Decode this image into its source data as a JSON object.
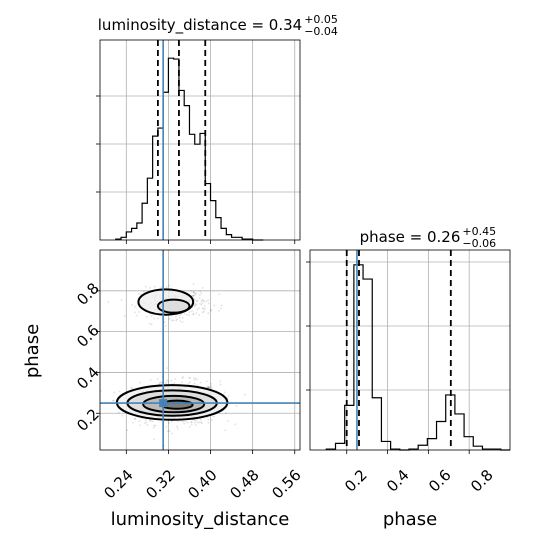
{
  "chart_data": [
    {
      "panel": "luminosity_distance",
      "type": "histogram",
      "title_prefix": "luminosity_distance = 0.34",
      "title_plus": "+0.05",
      "title_minus": "−0.04",
      "bin_edges": [
        0.22,
        0.23,
        0.24,
        0.25,
        0.26,
        0.27,
        0.28,
        0.29,
        0.3,
        0.31,
        0.32,
        0.33,
        0.34,
        0.35,
        0.36,
        0.37,
        0.38,
        0.39,
        0.4,
        0.41,
        0.42,
        0.43,
        0.44,
        0.46,
        0.48,
        0.5
      ],
      "counts": [
        1,
        3,
        9,
        13,
        19,
        41,
        69,
        116,
        125,
        165,
        203,
        202,
        167,
        150,
        118,
        107,
        119,
        63,
        44,
        25,
        13,
        6,
        3,
        1,
        0
      ],
      "quantiles": [
        0.3,
        0.34,
        0.39
      ],
      "truth": 0.31
    },
    {
      "panel": "phase",
      "type": "histogram",
      "title_prefix": "phase = 0.26",
      "title_plus": "+0.45",
      "title_minus": "−0.06",
      "bin_edges": [
        0.1,
        0.145,
        0.19,
        0.235,
        0.28,
        0.325,
        0.37,
        0.415,
        0.46,
        0.505,
        0.55,
        0.595,
        0.64,
        0.685,
        0.73,
        0.775,
        0.82,
        0.865,
        0.91,
        0.955,
        1.0
      ],
      "counts": [
        1,
        7,
        47,
        195,
        180,
        55,
        9,
        1,
        0,
        1,
        5,
        12,
        30,
        58,
        38,
        14,
        4,
        1,
        1,
        0
      ],
      "quantiles": [
        0.2,
        0.26,
        0.71
      ],
      "truth": 0.25
    },
    {
      "panel": "luminosity_distance_vs_phase",
      "type": "scatter",
      "xlim": [
        0.19,
        0.57
      ],
      "ylim": [
        0.02,
        1.0
      ],
      "truth": [
        0.31,
        0.25
      ],
      "blobs": [
        {
          "cx": 0.335,
          "cy": 0.25,
          "rx": 0.075,
          "ry": 0.095,
          "n": 900
        },
        {
          "cx": 0.33,
          "cy": 0.74,
          "rx": 0.06,
          "ry": 0.065,
          "n": 350
        }
      ],
      "contours": [
        {
          "cx": 0.327,
          "cy": 0.253,
          "rx": 0.105,
          "ry": 0.085
        },
        {
          "cx": 0.327,
          "cy": 0.25,
          "rx": 0.085,
          "ry": 0.062
        },
        {
          "cx": 0.33,
          "cy": 0.245,
          "rx": 0.058,
          "ry": 0.04
        },
        {
          "cx": 0.336,
          "cy": 0.242,
          "rx": 0.03,
          "ry": 0.02
        },
        {
          "cx": 0.315,
          "cy": 0.745,
          "rx": 0.052,
          "ry": 0.062
        },
        {
          "cx": 0.33,
          "cy": 0.725,
          "rx": 0.03,
          "ry": 0.032
        }
      ]
    }
  ],
  "axes": {
    "x_title_left": "luminosity_distance",
    "x_title_right": "phase",
    "y_title": "phase",
    "x_ticks_left": [
      "0.24",
      "0.32",
      "0.40",
      "0.48",
      "0.56"
    ],
    "x_ticks_right": [
      "0.2",
      "0.4",
      "0.6",
      "0.8"
    ],
    "y_ticks_left": [
      "0.2",
      "0.4",
      "0.6",
      "0.8"
    ]
  },
  "colors": {
    "truth": "#4682b4",
    "line": "#000000",
    "grid": "#b0b0b0",
    "points": "#000000"
  }
}
